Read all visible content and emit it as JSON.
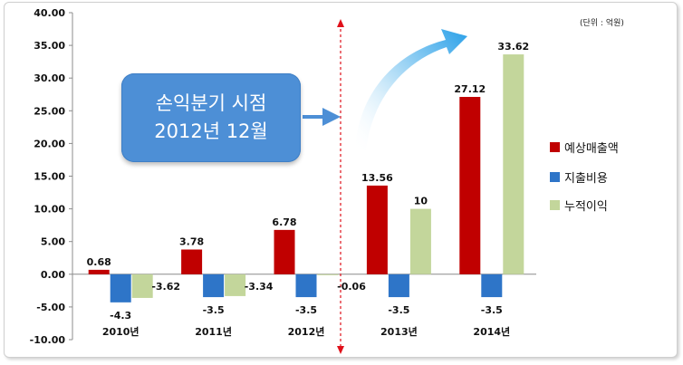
{
  "unit_label": "(단위 : 억원)",
  "callout": {
    "line1": "손익분기 시점",
    "line2": "2012년 12월"
  },
  "colors": {
    "revenue": "#c00000",
    "expense": "#2e75c8",
    "profit": "#c3d69b",
    "callout": "#4d8fd6",
    "divider": "#e0101a"
  },
  "chart_data": {
    "type": "bar",
    "categories": [
      "2010년",
      "2011년",
      "2012년",
      "2013년",
      "2014년"
    ],
    "series": [
      {
        "name": "예상매출액",
        "values": [
          0.68,
          3.78,
          6.78,
          13.56,
          27.12
        ]
      },
      {
        "name": "지출비용",
        "values": [
          -4.3,
          -3.5,
          -3.5,
          -3.5,
          -3.5
        ]
      },
      {
        "name": "누적이익",
        "values": [
          -3.62,
          -3.34,
          -0.06,
          10,
          33.62
        ]
      }
    ],
    "data_labels": [
      [
        "0.68",
        "3.78",
        "6.78",
        "13.56",
        "27.12"
      ],
      [
        "-4.3",
        "-3.5",
        "-3.5",
        "-3.5",
        "-3.5"
      ],
      [
        "-3.62",
        "-3.34",
        "-0.06",
        "10",
        "33.62"
      ]
    ],
    "ylim": [
      -10,
      40
    ],
    "yticks": [
      "-10.00",
      "-5.00",
      "0.00",
      "5.00",
      "10.00",
      "15.00",
      "20.00",
      "25.00",
      "30.00",
      "35.00",
      "40.00"
    ],
    "legend_position": "right",
    "grid": false
  }
}
